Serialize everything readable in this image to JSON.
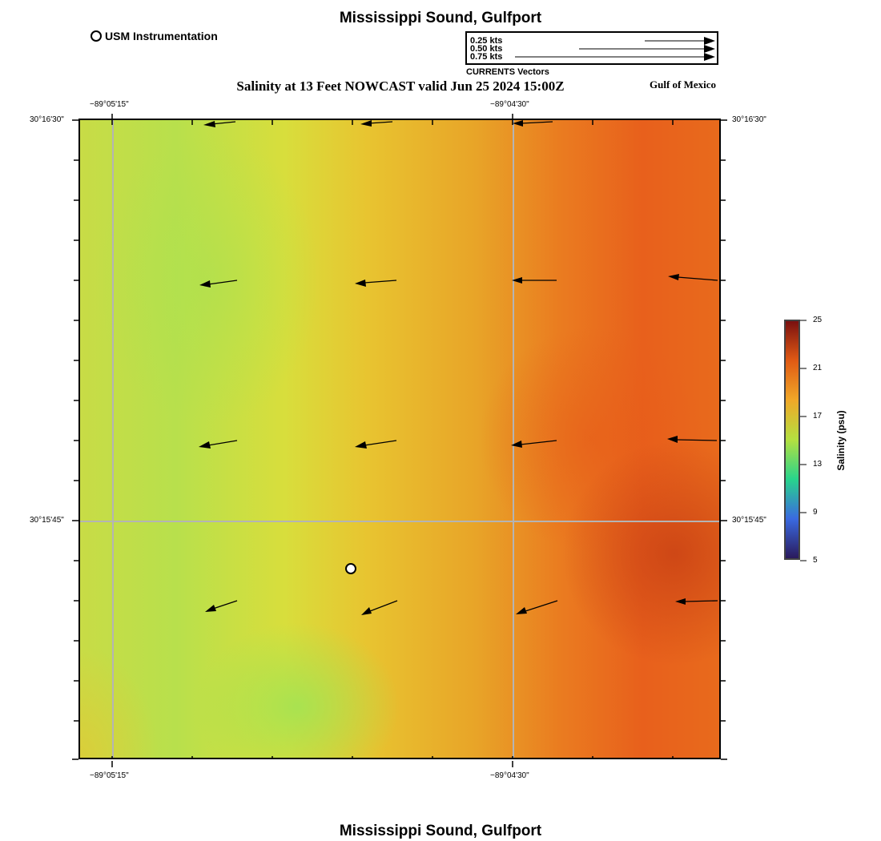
{
  "header": {
    "title": "Mississippi Sound, Gulfport",
    "marker_legend_label": "USM Instrumentation",
    "subtitle": "Salinity at 13 Feet NOWCAST valid Jun 25 2024 15:00Z",
    "region_label": "Gulf of Mexico"
  },
  "vector_legend": {
    "labels": [
      "0.25 kts",
      "0.50 kts",
      "0.75 kts"
    ],
    "caption": "CURRENTS Vectors"
  },
  "map": {
    "lon_ticks": [
      "−89°05'15\"",
      "−89°04'30\""
    ],
    "lat_ticks": [
      "30°16'30\"",
      "30°15'45\""
    ],
    "icons": {
      "station": "station-marker-icon",
      "current": "current-arrow-icon"
    }
  },
  "colorbar": {
    "label": "Salinity (psu)",
    "ticks": [
      "25",
      "21",
      "17",
      "13",
      "9",
      "5"
    ],
    "range": [
      5,
      25
    ],
    "colors": [
      "#2a1a5c",
      "#3a6ae0",
      "#28d48c",
      "#b4e040",
      "#f0a828",
      "#e05a14",
      "#7a1010"
    ]
  },
  "footer": {
    "title": "Mississippi Sound, Gulfport"
  }
}
